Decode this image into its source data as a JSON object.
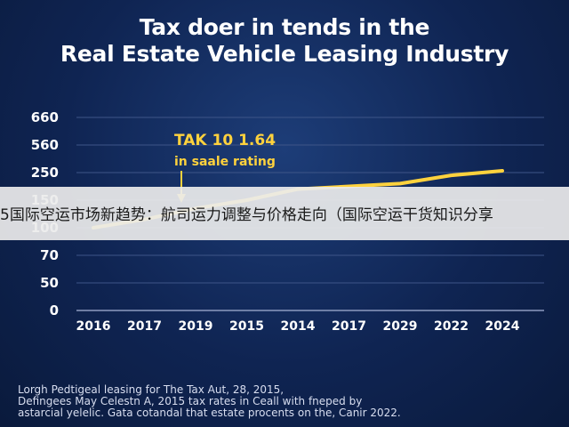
{
  "colors": {
    "background": "#0f2452",
    "line": "#ffd23d",
    "text": "#ffffff"
  },
  "chart_data": {
    "type": "line",
    "title": "Tax doer in tends in the Real Estate Vehicle Leasing Industry",
    "title_lines": [
      "Tax doer in tends in the",
      "Real Estate Vehicle Leasing Industry"
    ],
    "categories": [
      "2016",
      "2017",
      "2019",
      "2015",
      "2014",
      "2017",
      "2029",
      "2022",
      "2024"
    ],
    "y_ticks": [
      "0",
      "50",
      "70",
      "100",
      "150",
      "250",
      "560",
      "660"
    ],
    "series": [
      {
        "values": [
          100,
          115,
          135,
          150,
          190,
          200,
          210,
          240,
          270
        ]
      }
    ],
    "grid": true,
    "annotation": {
      "line1": "TAK 10 1.64",
      "line2": "in saale rating",
      "arrow_at": "2019"
    },
    "footnote": [
      "Lorgh Pedtigeal leasing for The Tax Aut, 28, 2015,",
      "Defingees May Celestn A, 2015 tax rates in Ceall with fneped by",
      "astarcial yelelic. Gata cotandal that estate procents on the, Canir 2022."
    ]
  },
  "overlay": {
    "text": "5国际空运市场新趋势：航司运力调整与价格走向（国际空运干货知识分享"
  }
}
